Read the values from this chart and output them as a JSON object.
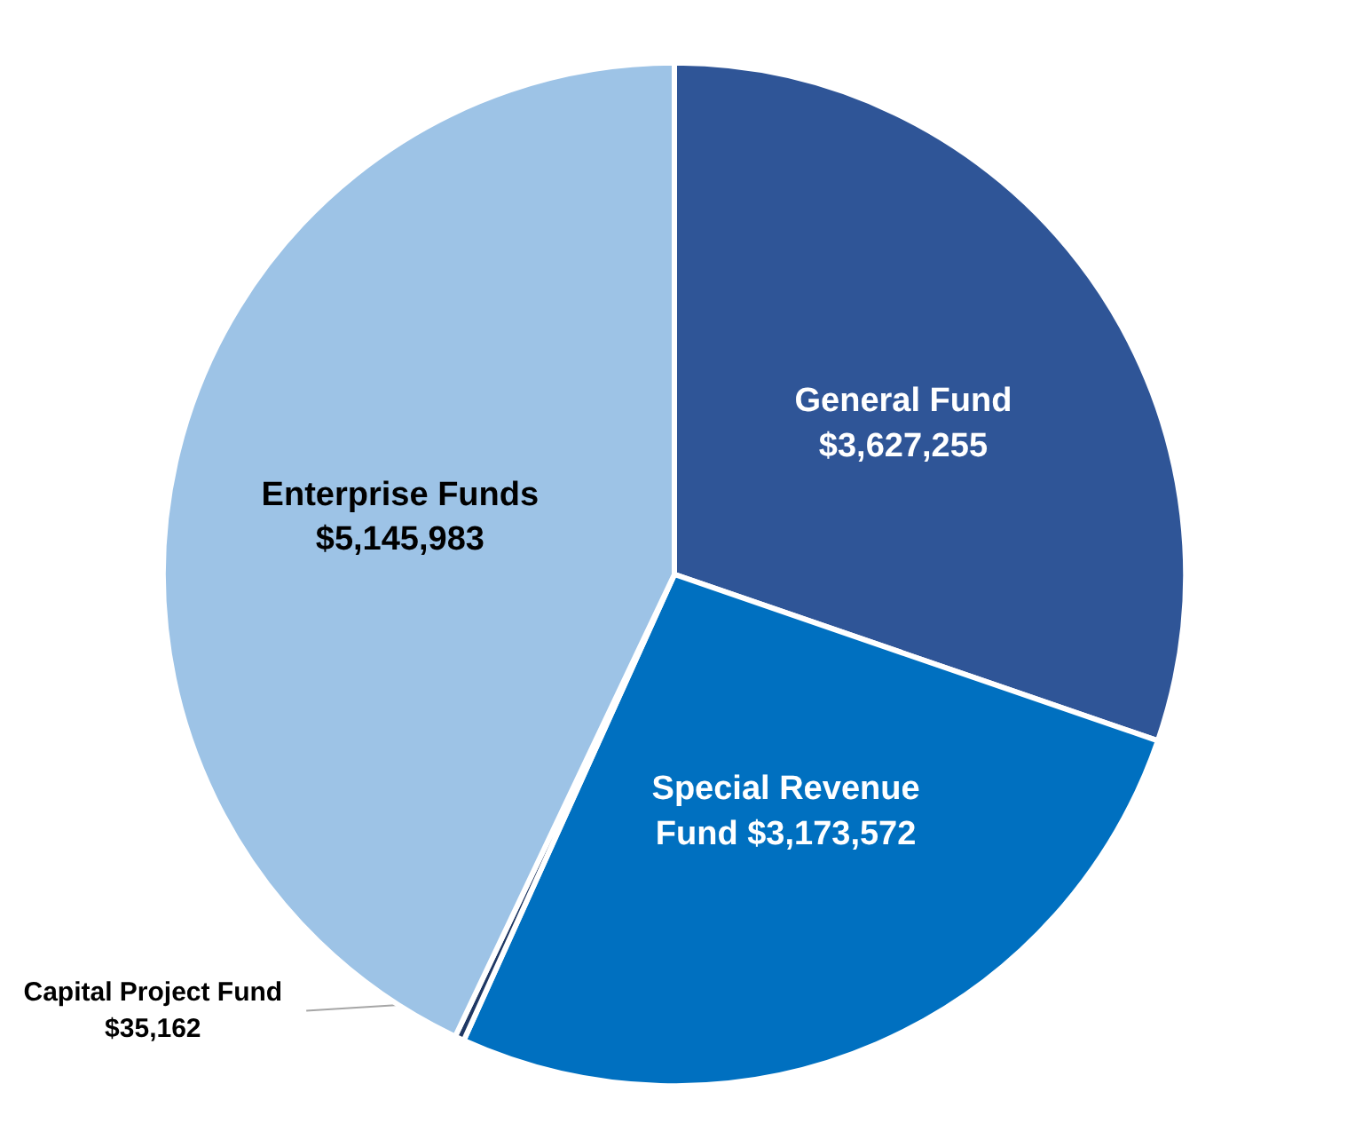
{
  "chart_data": {
    "type": "pie",
    "categories": [
      "General Fund",
      "Special Revenue Fund",
      "Capital Project Fund",
      "Enterprise Funds"
    ],
    "values": [
      3627255,
      3173572,
      35162,
      5145983
    ],
    "colors": [
      "#2f5597",
      "#0070c0",
      "#1f3864",
      "#9dc3e6"
    ],
    "value_labels": [
      "$3,627,255",
      "$3,173,572",
      "$35,162",
      "$5,145,983"
    ]
  }
}
